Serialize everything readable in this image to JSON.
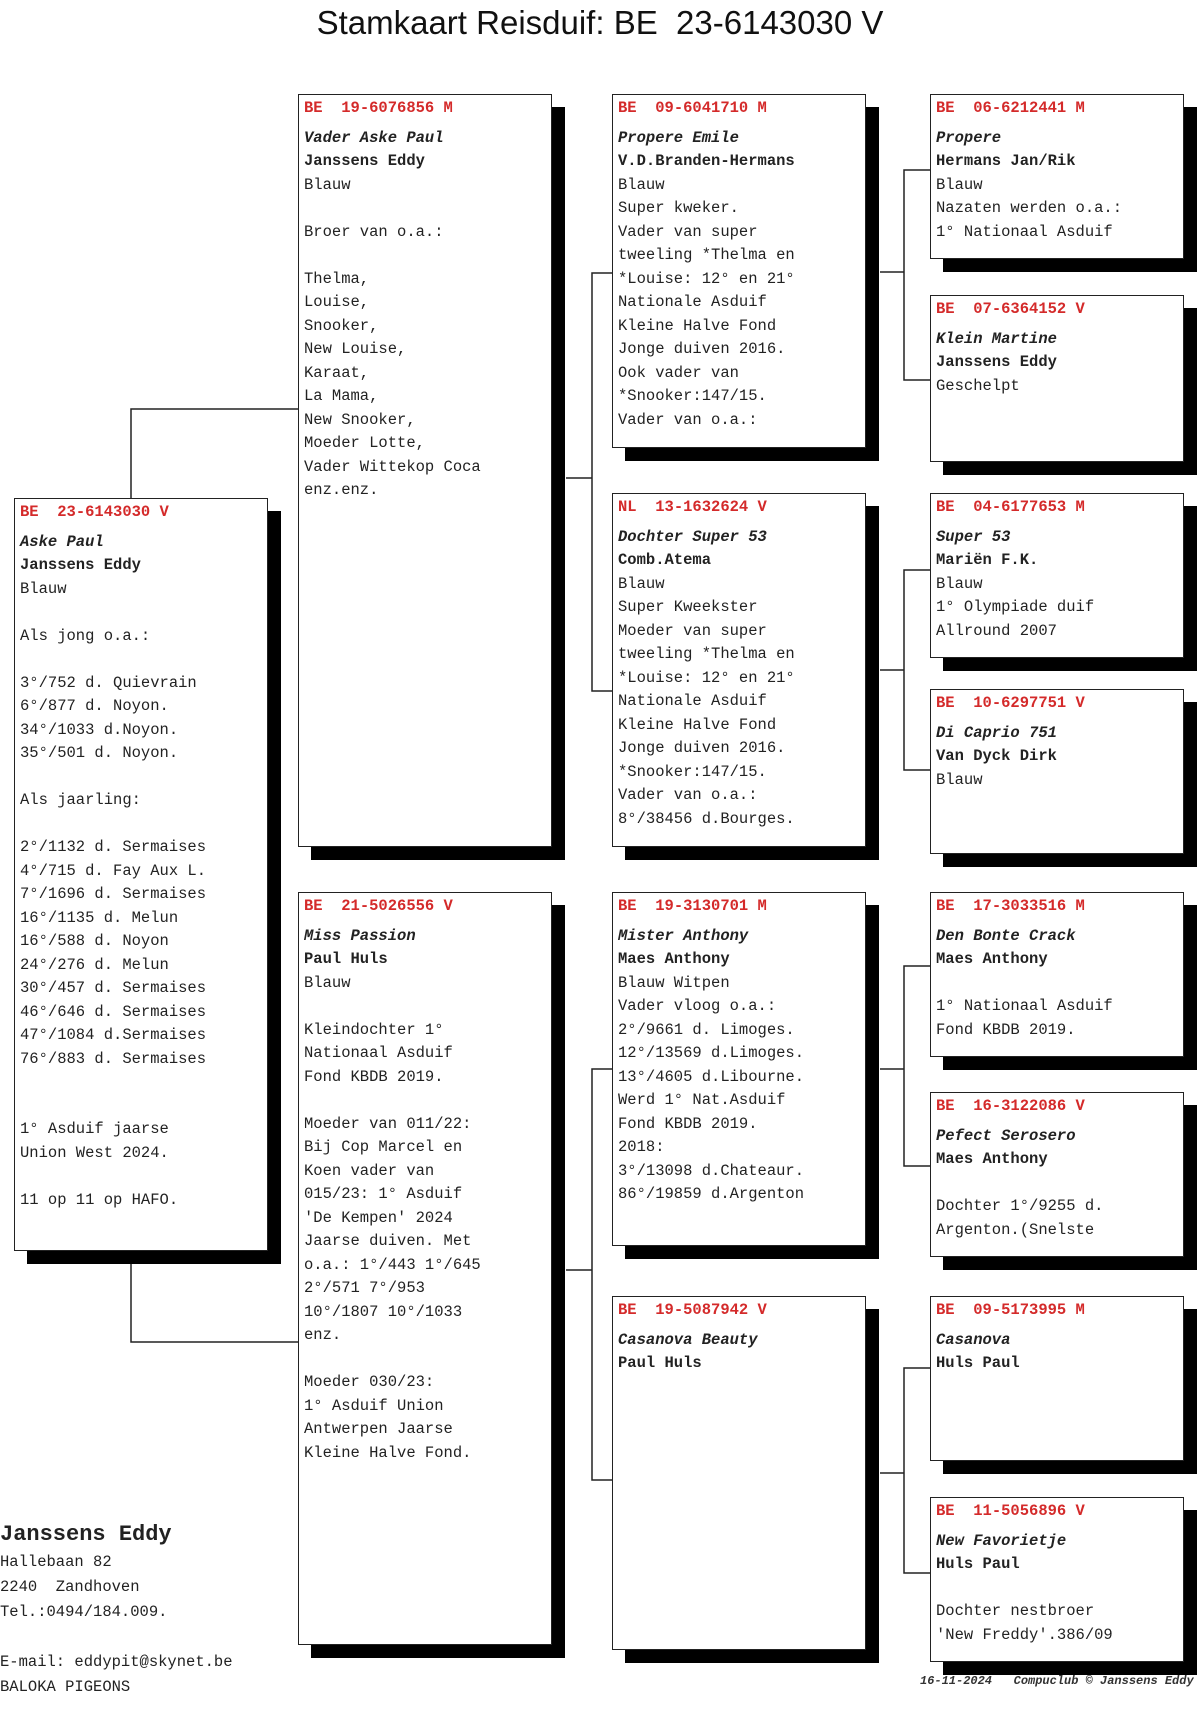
{
  "title": "Stamkaart Reisduif: BE  23-6143030 V",
  "pigeons": [
    {
      "id": "main",
      "ring": {
        "country": "BE",
        "number": "23-6143030",
        "sex": "V"
      },
      "name": "Aske Paul",
      "owner": "Janssens Eddy",
      "lines": [
        "Blauw",
        "",
        "Als jong o.a.:",
        "",
        "3°/752 d. Quievrain",
        "6°/877 d. Noyon.",
        "34°/1033 d.Noyon.",
        "35°/501 d. Noyon.",
        "",
        "Als jaarling:",
        "",
        "2°/1132 d. Sermaises",
        "4°/715 d. Fay Aux L.",
        "7°/1696 d. Sermaises",
        "16°/1135 d. Melun",
        "16°/588 d. Noyon",
        "24°/276 d. Melun",
        "30°/457 d. Sermaises",
        "46°/646 d. Sermaises",
        "47°/1084 d.Sermaises",
        "76°/883 d. Sermaises",
        "",
        "",
        "1° Asduif jaarse",
        "Union West 2024.",
        "",
        "11 op 11 op HAFO."
      ]
    },
    {
      "id": "father",
      "ring": {
        "country": "BE",
        "number": "19-6076856",
        "sex": "M"
      },
      "name": "Vader Aske Paul",
      "owner": "Janssens Eddy",
      "lines": [
        "Blauw",
        "",
        "Broer van o.a.:",
        "",
        "Thelma,",
        "Louise,",
        "Snooker,",
        "New Louise,",
        "Karaat,",
        "La Mama,",
        "New Snooker,",
        "Moeder Lotte,",
        "Vader Wittekop Coca",
        "enz.enz."
      ]
    },
    {
      "id": "mother",
      "ring": {
        "country": "BE",
        "number": "21-5026556",
        "sex": "V"
      },
      "name": "Miss Passion",
      "owner": "Paul Huls",
      "lines": [
        "Blauw",
        "",
        "Kleindochter 1°",
        "Nationaal Asduif",
        "Fond KBDB 2019.",
        "",
        "Moeder van 011/22:",
        "Bij Cop Marcel en",
        "Koen vader van",
        "015/23: 1° Asduif",
        "'De Kempen' 2024",
        "Jaarse duiven. Met",
        "o.a.: 1°/443 1°/645",
        "2°/571 7°/953",
        "10°/1807 10°/1033",
        "enz.",
        "",
        "Moeder 030/23:",
        "1° Asduif Union",
        "Antwerpen Jaarse",
        "Kleine Halve Fond."
      ]
    },
    {
      "id": "ff",
      "ring": {
        "country": "BE",
        "number": "09-6041710",
        "sex": "M"
      },
      "name": "Propere Emile",
      "owner": "V.D.Branden-Hermans",
      "lines": [
        "Blauw",
        "Super kweker.",
        "Vader van super",
        "tweeling *Thelma en",
        "*Louise: 12° en 21°",
        "Nationale Asduif",
        "Kleine Halve Fond",
        "Jonge duiven 2016.",
        "Ook vader van",
        "*Snooker:147/15.",
        "Vader van o.a.:"
      ]
    },
    {
      "id": "fm",
      "ring": {
        "country": "NL",
        "number": "13-1632624",
        "sex": "V"
      },
      "name": "Dochter Super 53",
      "owner": "Comb.Atema",
      "lines": [
        "Blauw",
        "Super Kweekster",
        "Moeder van super",
        "tweeling *Thelma en",
        "*Louise: 12° en 21°",
        "Nationale Asduif",
        "Kleine Halve Fond",
        "Jonge duiven 2016.",
        "*Snooker:147/15.",
        "Vader van o.a.:",
        "8°/38456 d.Bourges."
      ]
    },
    {
      "id": "mf",
      "ring": {
        "country": "BE",
        "number": "19-3130701",
        "sex": "M"
      },
      "name": "Mister Anthony",
      "owner": "Maes Anthony",
      "lines": [
        "Blauw Witpen",
        "Vader vloog o.a.:",
        "2°/9661 d. Limoges.",
        "12°/13569 d.Limoges.",
        "13°/4605 d.Libourne.",
        "Werd 1° Nat.Asduif",
        "Fond KBDB 2019.",
        "2018:",
        "3°/13098 d.Chateaur.",
        "86°/19859 d.Argenton"
      ]
    },
    {
      "id": "mm",
      "ring": {
        "country": "BE",
        "number": "19-5087942",
        "sex": "V"
      },
      "name": "Casanova Beauty",
      "owner": "Paul Huls",
      "lines": []
    },
    {
      "id": "fff",
      "ring": {
        "country": "BE",
        "number": "06-6212441",
        "sex": "M"
      },
      "name": "Propere",
      "owner": "Hermans Jan/Rik",
      "lines": [
        "Blauw",
        "Nazaten werden o.a.:",
        "1° Nationaal Asduif"
      ]
    },
    {
      "id": "ffm",
      "ring": {
        "country": "BE",
        "number": "07-6364152",
        "sex": "V"
      },
      "name": "Klein Martine",
      "owner": "Janssens Eddy",
      "lines": [
        "Geschelpt"
      ]
    },
    {
      "id": "fmf",
      "ring": {
        "country": "BE",
        "number": "04-6177653",
        "sex": "M"
      },
      "name": "Super 53",
      "owner": "Mariën F.K.",
      "lines": [
        "Blauw",
        "1° Olympiade duif",
        "Allround 2007"
      ]
    },
    {
      "id": "fmm",
      "ring": {
        "country": "BE",
        "number": "10-6297751",
        "sex": "V"
      },
      "name": "Di Caprio 751",
      "owner": "Van Dyck Dirk",
      "lines": [
        "Blauw"
      ]
    },
    {
      "id": "mff",
      "ring": {
        "country": "BE",
        "number": "17-3033516",
        "sex": "M"
      },
      "name": "Den Bonte Crack",
      "owner": "Maes Anthony",
      "lines": [
        "",
        "1° Nationaal Asduif",
        "Fond KBDB 2019."
      ]
    },
    {
      "id": "mfm",
      "ring": {
        "country": "BE",
        "number": "16-3122086",
        "sex": "V"
      },
      "name": "Pefect Serosero",
      "owner": "Maes Anthony",
      "lines": [
        "",
        "Dochter 1°/9255 d.",
        "Argenton.(Snelste"
      ]
    },
    {
      "id": "mmf",
      "ring": {
        "country": "BE",
        "number": "09-5173995",
        "sex": "M"
      },
      "name": "Casanova",
      "owner": "Huls Paul",
      "lines": []
    },
    {
      "id": "mmm",
      "ring": {
        "country": "BE",
        "number": "11-5056896",
        "sex": "V"
      },
      "name": "New Favorietje",
      "owner": "Huls Paul",
      "lines": [
        "",
        "Dochter nestbroer",
        "'New Freddy'.386/09"
      ]
    }
  ],
  "breeder": {
    "name": "Janssens Eddy",
    "lines": [
      "Hallebaan 82",
      "2240  Zandhoven",
      "Tel.:0494/184.009.",
      "",
      "E-mail: eddypit@skynet.be",
      "BALOKA PIGEONS"
    ]
  },
  "footer": "16-11-2024   Compuclub © Janssens Eddy",
  "colors": {
    "ring": "#d42a2a",
    "shadow": "#000000"
  }
}
